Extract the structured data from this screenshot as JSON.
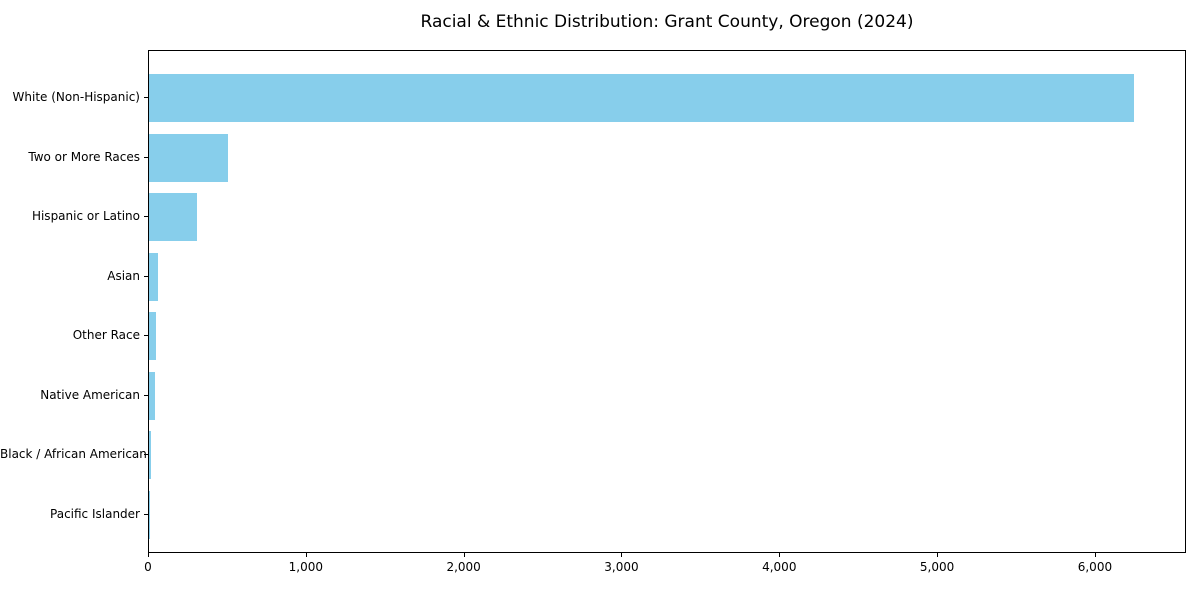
{
  "chart_data": {
    "type": "bar",
    "orientation": "horizontal",
    "title": "Racial & Ethnic Distribution: Grant County, Oregon (2024)",
    "categories": [
      "White (Non-Hispanic)",
      "Two or More Races",
      "Hispanic or Latino",
      "Asian",
      "Other Race",
      "Native American",
      "Black / African American",
      "Pacific Islander"
    ],
    "values": [
      6254,
      500,
      305,
      55,
      45,
      38,
      10,
      3
    ],
    "xlabel": "",
    "ylabel": "",
    "xlim": [
      0,
      6577
    ],
    "x_ticks": [
      0,
      1000,
      2000,
      3000,
      4000,
      5000,
      6000
    ],
    "x_tick_labels": [
      "0",
      "1,000",
      "2,000",
      "3,000",
      "4,000",
      "5,000",
      "6,000"
    ],
    "bar_color": "#87CEEB",
    "grid": false,
    "legend_position": "none",
    "background_color": "#ffffff",
    "axis_color": "#000000"
  }
}
